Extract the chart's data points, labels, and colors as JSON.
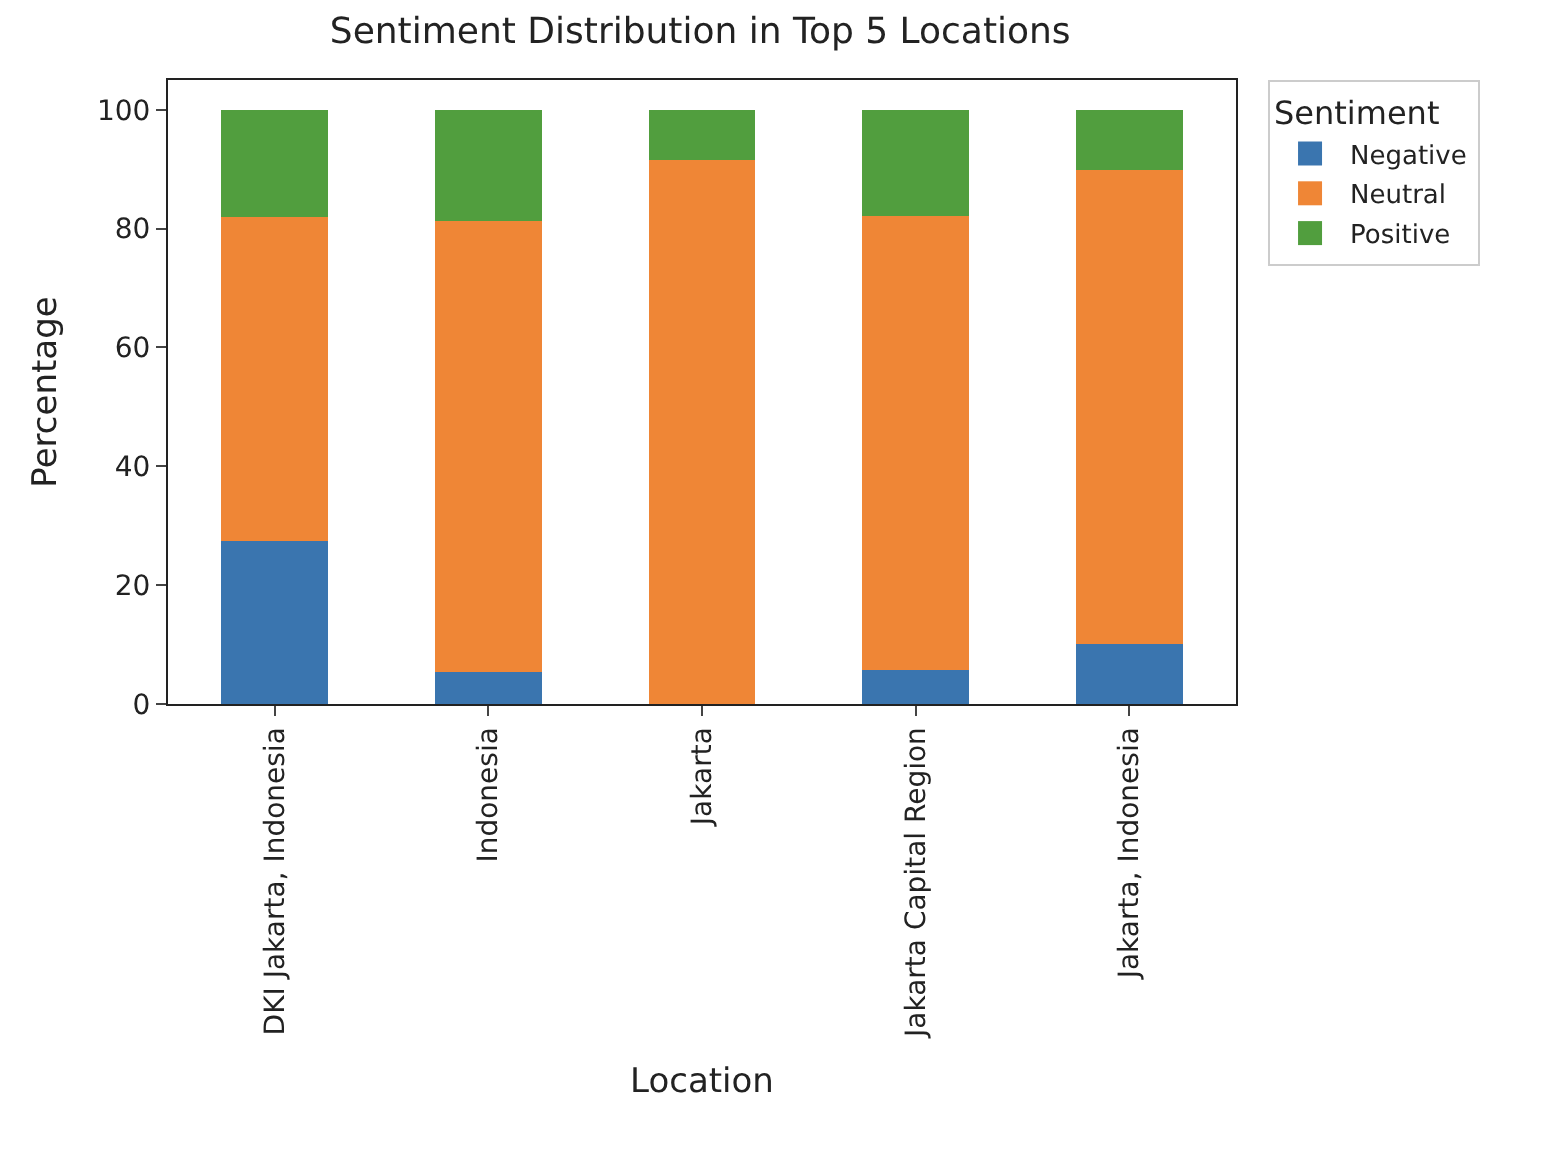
{
  "chart_data": {
    "type": "bar",
    "stacked": true,
    "title": "Sentiment Distribution in Top 5 Locations",
    "xlabel": "Location",
    "ylabel": "Percentage",
    "legend_title": "Sentiment",
    "legend": "top right",
    "categories": [
      "DKI Jakarta, Indonesia",
      "Indonesia",
      "Jakarta",
      "Jakarta Capital Region",
      "Jakarta, Indonesia"
    ],
    "series": [
      {
        "name": "Negative",
        "color": "#3a75af",
        "values": [
          27.5,
          5.4,
          0,
          5.7,
          10.1
        ]
      },
      {
        "name": "Neutral",
        "color": "#ef8636",
        "values": [
          54.4,
          75.8,
          91.6,
          76.5,
          79.8
        ]
      },
      {
        "name": "Positive",
        "color": "#519e3e",
        "values": [
          18.1,
          18.8,
          8.4,
          17.8,
          10.1
        ]
      }
    ],
    "ylim": [
      0,
      105
    ],
    "yticks": [
      0,
      20,
      40,
      60,
      80,
      100
    ]
  }
}
